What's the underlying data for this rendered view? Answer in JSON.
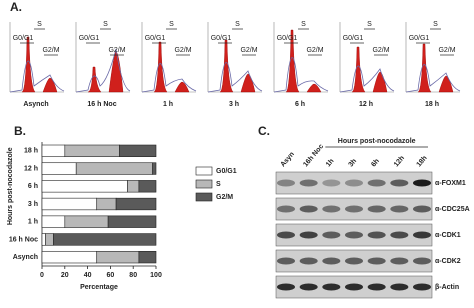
{
  "panel_a": {
    "label": "A.",
    "plots": [
      {
        "label": "Asynch",
        "gates": [
          "G0/G1",
          "S",
          "G2/M"
        ]
      },
      {
        "label": "16 h Noc",
        "gates": [
          "G0/G1",
          "S",
          "G2/M"
        ]
      },
      {
        "label": "1 h",
        "gates": [
          "G0/G1",
          "S",
          "G2/M"
        ]
      },
      {
        "label": "3 h",
        "gates": [
          "G0/G1",
          "S",
          "G2/M"
        ]
      },
      {
        "label": "6 h",
        "gates": [
          "G0/G1",
          "S",
          "G2/M"
        ]
      },
      {
        "label": "12 h",
        "gates": [
          "G0/G1",
          "S",
          "G2/M"
        ]
      },
      {
        "label": "18 h",
        "gates": [
          "G0/G1",
          "S",
          "G2/M"
        ]
      }
    ]
  },
  "panel_b": {
    "label": "B."
  },
  "chart_data": {
    "type": "stacked_barh",
    "x_label": "Percentage",
    "y_label": "Hours post-nocodazole",
    "categories": [
      "18 h",
      "12 h",
      "6 h",
      "3 h",
      "1 h",
      "16 h Noc",
      "Asynch"
    ],
    "series": [
      {
        "name": "G0/G1",
        "color": "#ffffff",
        "values": [
          20,
          30,
          75,
          48,
          20,
          3,
          48
        ]
      },
      {
        "name": "S",
        "color": "#b8b8b8",
        "values": [
          48,
          67,
          10,
          17,
          38,
          7,
          37
        ]
      },
      {
        "name": "G2/M",
        "color": "#5a5a5a",
        "values": [
          32,
          3,
          15,
          35,
          42,
          90,
          15
        ]
      }
    ],
    "xlim": [
      0,
      100
    ],
    "xticks": [
      0,
      20,
      40,
      60,
      80,
      100
    ]
  },
  "panel_c": {
    "label": "C.",
    "header": "Hours post-nocodazole",
    "columns": [
      "Asyn",
      "16h Noc",
      "1h",
      "3h",
      "6h",
      "12h",
      "18h"
    ],
    "rows": [
      "α-FOXM1",
      "α-CDC25A",
      "α-CDK1",
      "α-CDK2",
      "β-Actin"
    ]
  }
}
